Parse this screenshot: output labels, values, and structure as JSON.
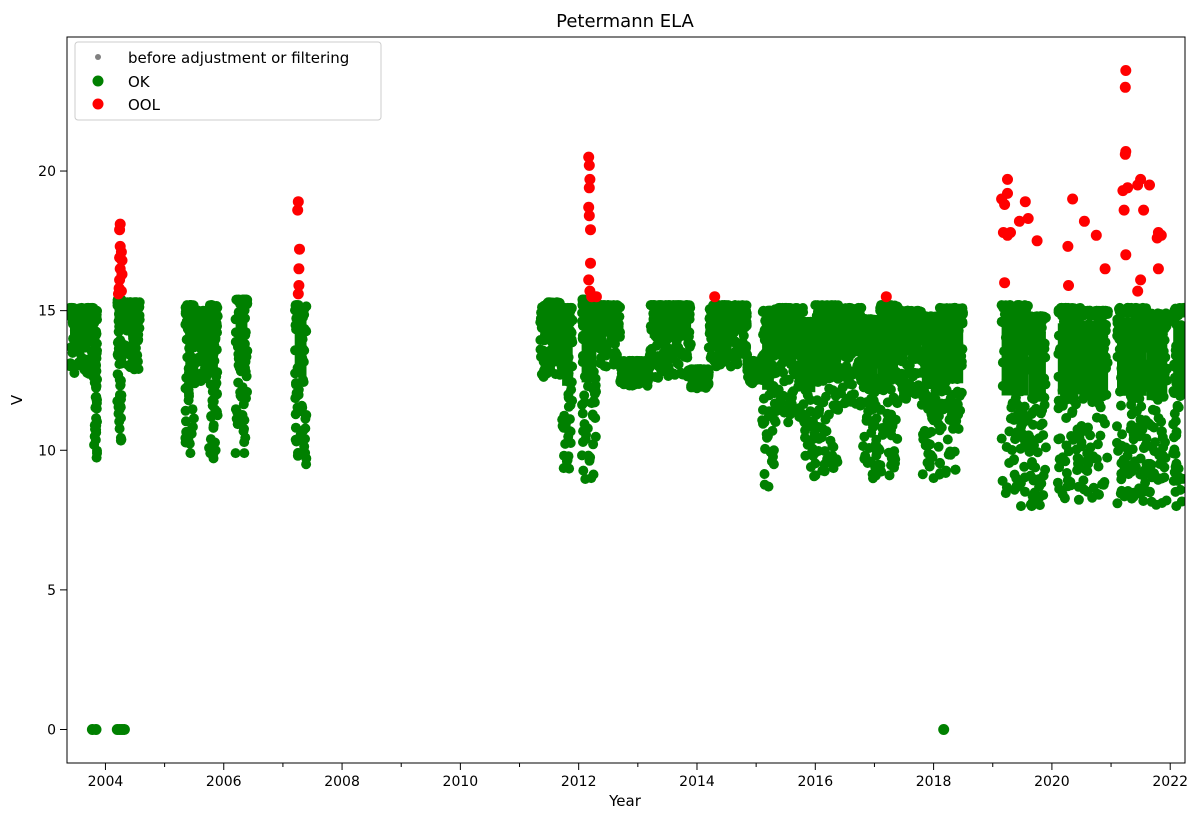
{
  "chart_data": {
    "type": "scatter",
    "title": "Petermann ELA",
    "xlabel": "Year",
    "ylabel": "V",
    "xlim": [
      2003.35,
      2022.25
    ],
    "ylim": [
      -1.2,
      24.8
    ],
    "x_ticks": [
      "2004",
      "2006",
      "2008",
      "2010",
      "2012",
      "2014",
      "2016",
      "2018",
      "2020",
      "2022"
    ],
    "y_ticks": [
      "0",
      "5",
      "10",
      "15",
      "20"
    ],
    "grid": false,
    "legend_position": "upper left",
    "colors": {
      "before": "#808080",
      "ok": "#008000",
      "ool": "#ff0000"
    },
    "series": [
      {
        "name": "before adjustment or filtering",
        "marker": "small-dot",
        "color": "#808080",
        "points": []
      },
      {
        "name": "OK",
        "marker": "dot",
        "color": "#008000",
        "bands": [
          [
            2003.4,
            2003.8,
            12.6,
            15.1
          ],
          [
            2003.8,
            2003.86,
            9.6,
            15.0
          ],
          [
            2004.2,
            2004.28,
            10.0,
            15.4
          ],
          [
            2004.28,
            2004.58,
            12.9,
            15.3
          ],
          [
            2005.35,
            2005.5,
            9.9,
            15.2
          ],
          [
            2005.5,
            2005.75,
            12.4,
            15.0
          ],
          [
            2005.75,
            2005.9,
            9.6,
            15.2
          ],
          [
            2006.2,
            2006.4,
            9.9,
            15.4
          ],
          [
            2007.2,
            2007.4,
            9.5,
            15.2
          ],
          [
            2011.35,
            2011.72,
            12.6,
            15.3
          ],
          [
            2011.72,
            2011.9,
            8.9,
            15.1
          ],
          [
            2012.05,
            2012.3,
            8.8,
            15.4
          ],
          [
            2012.3,
            2012.7,
            13.0,
            15.2
          ],
          [
            2012.7,
            2013.2,
            12.3,
            13.2
          ],
          [
            2013.2,
            2013.9,
            12.6,
            15.2
          ],
          [
            2013.9,
            2014.2,
            12.2,
            12.9
          ],
          [
            2014.2,
            2014.85,
            13.0,
            15.2
          ],
          [
            2014.85,
            2015.1,
            12.4,
            13.2
          ],
          [
            2015.1,
            2015.3,
            8.7,
            15.0
          ],
          [
            2015.3,
            2015.8,
            11.0,
            15.1
          ],
          [
            2015.8,
            2016.0,
            9.0,
            14.6
          ],
          [
            2016.0,
            2016.4,
            9.1,
            15.2
          ],
          [
            2016.4,
            2016.8,
            11.6,
            15.1
          ],
          [
            2016.8,
            2017.05,
            9.0,
            14.7
          ],
          [
            2017.05,
            2017.4,
            9.1,
            15.2
          ],
          [
            2017.4,
            2017.8,
            11.6,
            15.0
          ],
          [
            2017.8,
            2018.1,
            9.0,
            14.8
          ],
          [
            2018.1,
            2018.5,
            9.1,
            15.1
          ],
          [
            2019.15,
            2019.6,
            8.0,
            15.2
          ],
          [
            2019.6,
            2019.9,
            8.0,
            14.8
          ],
          [
            2020.1,
            2020.5,
            8.2,
            15.1
          ],
          [
            2020.5,
            2020.95,
            8.3,
            15.0
          ],
          [
            2021.1,
            2021.6,
            8.1,
            15.1
          ],
          [
            2021.6,
            2021.95,
            8.0,
            14.9
          ],
          [
            2022.05,
            2022.25,
            8.0,
            15.1
          ]
        ],
        "points": [
          [
            2003.78,
            0
          ],
          [
            2003.84,
            0
          ],
          [
            2004.2,
            0
          ],
          [
            2004.24,
            0
          ],
          [
            2004.28,
            0
          ],
          [
            2004.32,
            0
          ],
          [
            2018.17,
            0
          ]
        ]
      },
      {
        "name": "OOL",
        "marker": "dot",
        "color": "#ff0000",
        "points": [
          [
            2004.22,
            15.6
          ],
          [
            2004.23,
            15.8
          ],
          [
            2004.24,
            16.1
          ],
          [
            2004.25,
            16.5
          ],
          [
            2004.24,
            16.9
          ],
          [
            2004.25,
            17.3
          ],
          [
            2004.24,
            17.9
          ],
          [
            2004.25,
            18.1
          ],
          [
            2004.27,
            15.7
          ],
          [
            2004.28,
            16.3
          ],
          [
            2004.28,
            16.8
          ],
          [
            2004.27,
            17.1
          ],
          [
            2007.25,
            18.6
          ],
          [
            2007.26,
            18.9
          ],
          [
            2007.28,
            17.2
          ],
          [
            2007.27,
            16.5
          ],
          [
            2007.27,
            15.9
          ],
          [
            2007.26,
            15.6
          ],
          [
            2012.17,
            20.5
          ],
          [
            2012.18,
            20.2
          ],
          [
            2012.19,
            19.7
          ],
          [
            2012.18,
            19.4
          ],
          [
            2012.17,
            18.7
          ],
          [
            2012.18,
            18.4
          ],
          [
            2012.2,
            17.9
          ],
          [
            2012.2,
            16.7
          ],
          [
            2012.17,
            16.1
          ],
          [
            2012.19,
            15.7
          ],
          [
            2012.22,
            15.5
          ],
          [
            2012.3,
            15.5
          ],
          [
            2014.3,
            15.5
          ],
          [
            2017.2,
            15.5
          ],
          [
            2019.15,
            19.0
          ],
          [
            2019.2,
            18.8
          ],
          [
            2019.25,
            19.7
          ],
          [
            2019.25,
            19.2
          ],
          [
            2019.18,
            17.8
          ],
          [
            2019.25,
            17.7
          ],
          [
            2019.3,
            17.8
          ],
          [
            2019.2,
            16.0
          ],
          [
            2019.45,
            18.2
          ],
          [
            2019.55,
            18.9
          ],
          [
            2019.6,
            18.3
          ],
          [
            2019.75,
            17.5
          ],
          [
            2020.27,
            17.3
          ],
          [
            2020.35,
            19.0
          ],
          [
            2020.28,
            15.9
          ],
          [
            2020.55,
            18.2
          ],
          [
            2020.75,
            17.7
          ],
          [
            2020.9,
            16.5
          ],
          [
            2021.25,
            23.6
          ],
          [
            2021.24,
            23.0
          ],
          [
            2021.25,
            20.7
          ],
          [
            2021.24,
            20.6
          ],
          [
            2021.2,
            19.3
          ],
          [
            2021.22,
            18.6
          ],
          [
            2021.28,
            19.4
          ],
          [
            2021.25,
            17.0
          ],
          [
            2021.45,
            19.5
          ],
          [
            2021.5,
            19.7
          ],
          [
            2021.55,
            18.6
          ],
          [
            2021.65,
            19.5
          ],
          [
            2021.5,
            16.1
          ],
          [
            2021.45,
            15.7
          ],
          [
            2021.8,
            17.8
          ],
          [
            2021.78,
            17.6
          ],
          [
            2021.85,
            17.7
          ],
          [
            2021.8,
            16.5
          ]
        ]
      }
    ]
  }
}
